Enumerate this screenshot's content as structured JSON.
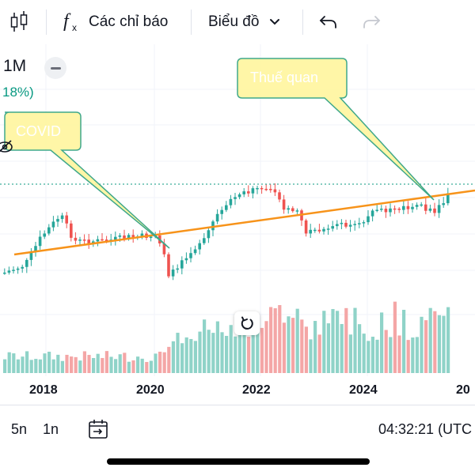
{
  "toolbar": {
    "indicators_label": "Các chỉ báo",
    "chart_type_label": "Biểu đồ",
    "icons": [
      "candles-icon",
      "fx-icon",
      "chevron-down-icon",
      "undo-icon",
      "redo-icon"
    ]
  },
  "legend": {
    "interval": "1M",
    "change": "18%)"
  },
  "annotations": {
    "covid": "COVID",
    "tariff": "Thuế quan"
  },
  "xaxis": {
    "labels": [
      "2018",
      "2020",
      "2022",
      "2024",
      "20"
    ]
  },
  "bottom": {
    "range_5y": "5n",
    "range_1y": "1n",
    "clock": "04:32:21 (UTC"
  },
  "colors": {
    "up": "#26a69a",
    "down": "#ef5350",
    "trendline": "#f7931a",
    "callout": "#fff59d",
    "callout_border": "#3fa88b",
    "price_line": "#089981"
  }
}
